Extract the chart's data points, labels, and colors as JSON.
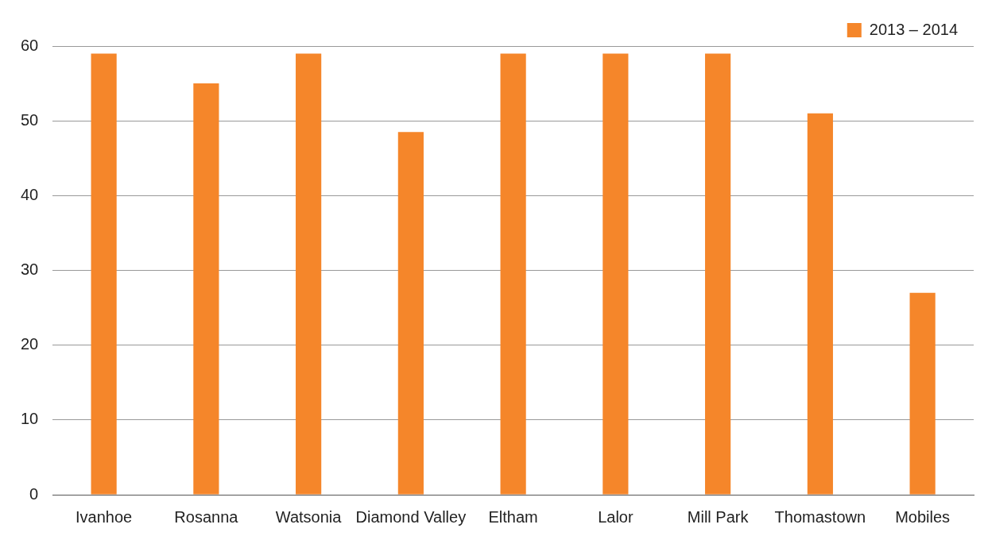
{
  "chart_data": {
    "type": "bar",
    "categories": [
      "Ivanhoe",
      "Rosanna",
      "Watsonia",
      "Diamond Valley",
      "Eltham",
      "Lalor",
      "Mill Park",
      "Thomastown",
      "Mobiles"
    ],
    "series": [
      {
        "name": "2013 – 2014",
        "color": "#f5862a",
        "values": [
          59,
          55,
          59,
          48.5,
          59,
          59,
          59,
          51,
          27
        ]
      }
    ],
    "ylim": [
      0,
      60
    ],
    "yticks": [
      0,
      10,
      20,
      30,
      40,
      50,
      60
    ],
    "grid": "y",
    "legend": "top right"
  }
}
